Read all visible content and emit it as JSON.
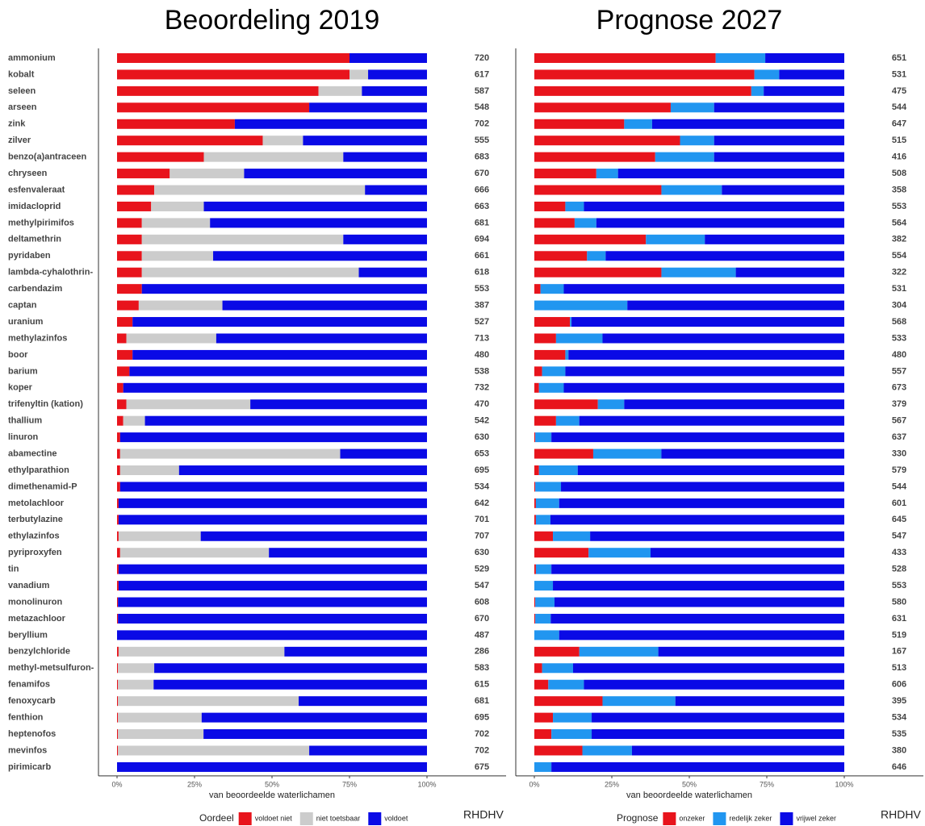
{
  "chart_data": [
    {
      "type": "bar",
      "orientation": "horizontal",
      "stacked": true,
      "title": "Beoordeling 2019",
      "categories": [
        "ammonium",
        "kobalt",
        "seleen",
        "arseen",
        "zink",
        "zilver",
        "benzo(a)antraceen",
        "chryseen",
        "esfenvaleraat",
        "imidacloprid",
        "methylpirimifos",
        "deltamethrin",
        "pyridaben",
        "lambda-cyhalothrin-",
        "carbendazim",
        "captan",
        "uranium",
        "methylazinfos",
        "boor",
        "barium",
        "koper",
        "trifenyltin (kation)",
        "thallium",
        "linuron",
        "abamectine",
        "ethylparathion",
        "dimethenamid-P",
        "metolachloor",
        "terbutylazine",
        "ethylazinfos",
        "pyriproxyfen",
        "tin",
        "vanadium",
        "monolinuron",
        "metazachloor",
        "beryllium",
        "benzylchloride",
        "methyl-metsulfuron-",
        "fenamifos",
        "fenoxycarb",
        "fenthion",
        "heptenofos",
        "mevinfos",
        "pirimicarb"
      ],
      "series": [
        {
          "name": "voldoet niet",
          "color": "#e8141c",
          "values": [
            75,
            75,
            65,
            62,
            38,
            47,
            28,
            17,
            12,
            11,
            8,
            8,
            8,
            8,
            8,
            7,
            5,
            3,
            5,
            4,
            2,
            3,
            2,
            1,
            1,
            1,
            1,
            0.5,
            0.5,
            0.5,
            1,
            0.5,
            0.5,
            0.3,
            0.3,
            0,
            0.5,
            0.3,
            0.3,
            0.3,
            0.3,
            0.3,
            0.3,
            0
          ]
        },
        {
          "name": "niet toetsbaar",
          "color": "#cccccc",
          "values": [
            0,
            6,
            14,
            0,
            0,
            13,
            45,
            24,
            68,
            17,
            22,
            65,
            23,
            70,
            0,
            27,
            0,
            29,
            0,
            0,
            0,
            40,
            7,
            0,
            71,
            19,
            0,
            0,
            0,
            26.5,
            48,
            0,
            0,
            0,
            0,
            0,
            53.5,
            11.7,
            11.5,
            58.3,
            27,
            27.6,
            61.7,
            0
          ]
        },
        {
          "name": "voldoet",
          "color": "#0a0ae6",
          "values": [
            25,
            19,
            21,
            38,
            62,
            40,
            27,
            59,
            20,
            72,
            70,
            27,
            69,
            22,
            92,
            66,
            95,
            68,
            95,
            96,
            98,
            57,
            91,
            99,
            28,
            80,
            99,
            99.5,
            99.5,
            73,
            51,
            99.5,
            99.5,
            99.7,
            99.7,
            100,
            46,
            88,
            88.2,
            41.4,
            72.7,
            72.1,
            38,
            100
          ]
        }
      ],
      "counts": [
        720,
        617,
        587,
        548,
        702,
        555,
        683,
        670,
        666,
        663,
        681,
        694,
        661,
        618,
        553,
        387,
        527,
        713,
        480,
        538,
        732,
        470,
        542,
        630,
        653,
        695,
        534,
        642,
        701,
        707,
        630,
        529,
        547,
        608,
        670,
        487,
        286,
        583,
        615,
        681,
        695,
        702,
        702,
        675
      ],
      "xlim": [
        0,
        100
      ],
      "xticks": [
        {
          "value": 0,
          "label": "0%"
        },
        {
          "value": 25,
          "label": "25%"
        },
        {
          "value": 50,
          "label": "50%"
        },
        {
          "value": 75,
          "label": "75%"
        },
        {
          "value": 100,
          "label": "100%"
        }
      ],
      "x_label": "van beoordeelde waterlichamen",
      "legend_title": "Oordeel",
      "source": "RHDHV"
    },
    {
      "type": "bar",
      "orientation": "horizontal",
      "stacked": true,
      "title": "Prognose 2027",
      "series": [
        {
          "name": "onzeker",
          "color": "#e8141c",
          "values": [
            58.5,
            71,
            70,
            44,
            29,
            47,
            39,
            20,
            41,
            10,
            13,
            36,
            17,
            41,
            2,
            0,
            11.5,
            7,
            10,
            2.5,
            1.5,
            20.5,
            7,
            0.3,
            19,
            1.5,
            0.3,
            0.5,
            0.5,
            6,
            17.5,
            0.5,
            0,
            0.3,
            0.3,
            0,
            14.5,
            2.5,
            4.5,
            22,
            6,
            5.5,
            15.5,
            0
          ]
        },
        {
          "name": "redelijk zeker",
          "color": "#2196f0",
          "values": [
            16,
            8,
            4,
            14,
            9,
            11,
            19,
            7,
            19.5,
            6,
            7,
            19,
            6,
            24,
            7.5,
            30,
            0.5,
            15,
            1,
            7.5,
            8,
            8.5,
            7.5,
            5.2,
            22,
            12.5,
            8.3,
            7.5,
            4.7,
            12,
            20,
            5,
            6,
            6.2,
            5,
            8,
            25.5,
            10,
            11.5,
            23.5,
            12.5,
            13,
            16,
            5.5
          ]
        },
        {
          "name": "vrijwel zeker",
          "color": "#0a0ae6",
          "values": [
            25.5,
            21,
            26,
            42,
            62,
            42,
            42,
            73,
            39.5,
            84,
            80,
            45,
            77,
            35,
            90.5,
            70,
            88,
            78,
            89,
            90,
            90.5,
            71,
            85.5,
            94.5,
            59,
            86,
            91.4,
            92,
            94.8,
            82,
            62.5,
            94.5,
            94,
            93.5,
            94.7,
            92,
            60,
            87.5,
            84,
            54.5,
            81.5,
            81.5,
            68.5,
            94.5
          ]
        }
      ],
      "counts": [
        651,
        531,
        475,
        544,
        647,
        515,
        416,
        508,
        358,
        553,
        564,
        382,
        554,
        322,
        531,
        304,
        568,
        533,
        480,
        557,
        673,
        379,
        567,
        637,
        330,
        579,
        544,
        601,
        645,
        547,
        433,
        528,
        553,
        580,
        631,
        519,
        167,
        513,
        606,
        395,
        534,
        535,
        380,
        646
      ],
      "xlim": [
        0,
        100
      ],
      "xticks": [
        {
          "value": 0,
          "label": "0%"
        },
        {
          "value": 25,
          "label": "25%"
        },
        {
          "value": 50,
          "label": "50%"
        },
        {
          "value": 75,
          "label": "75%"
        },
        {
          "value": 100,
          "label": "100%"
        }
      ],
      "x_label": "van beoordeelde waterlichamen",
      "legend_title": "Prognose",
      "source": "RHDHV"
    }
  ]
}
